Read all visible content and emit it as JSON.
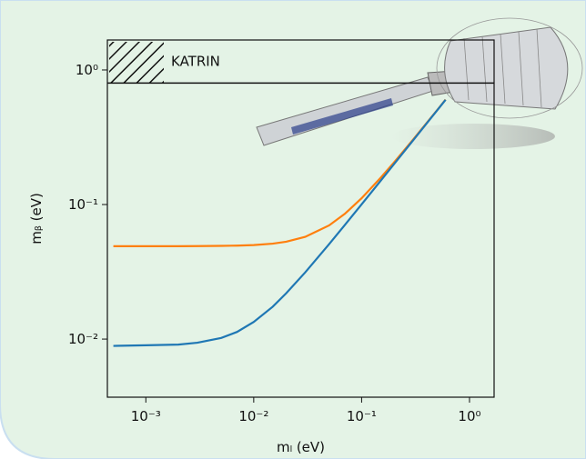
{
  "chart_data": {
    "type": "line",
    "x_label": "mₗ (eV)",
    "y_label": "mᵦ (eV)",
    "xlog": true,
    "ylog": true,
    "xlim": [
      0.00044,
      1.69
    ],
    "ylim": [
      0.0037,
      1.67
    ],
    "xticks": [
      {
        "value": 0.001,
        "label": "10⁻³"
      },
      {
        "value": 0.01,
        "label": "10⁻²"
      },
      {
        "value": 0.1,
        "label": "10⁻¹"
      },
      {
        "value": 1,
        "label": "10⁰"
      }
    ],
    "yticks": [
      {
        "value": 0.01,
        "label": "10⁻²"
      },
      {
        "value": 0.1,
        "label": "10⁻¹"
      },
      {
        "value": 1,
        "label": "10⁰"
      }
    ],
    "x": [
      0.0005,
      0.001,
      0.002,
      0.003,
      0.005,
      0.007,
      0.01,
      0.015,
      0.02,
      0.03,
      0.05,
      0.07,
      0.1,
      0.15,
      0.2,
      0.3,
      0.5,
      0.6
    ],
    "series": [
      {
        "color": "#ff7f0e",
        "values": [
          0.049,
          0.049,
          0.049,
          0.0491,
          0.0493,
          0.0495,
          0.05,
          0.0512,
          0.0529,
          0.0575,
          0.07,
          0.0854,
          0.1114,
          0.158,
          0.206,
          0.304,
          0.502,
          0.602
        ]
      },
      {
        "color": "#1f77b4",
        "values": [
          0.0089,
          0.009,
          0.0091,
          0.0094,
          0.0102,
          0.0113,
          0.0134,
          0.0174,
          0.0219,
          0.0313,
          0.0508,
          0.0706,
          0.1004,
          0.15,
          0.2,
          0.3,
          0.5,
          0.6
        ]
      }
    ],
    "katrin": {
      "label": "KATRIN",
      "limit": 0.8
    }
  }
}
